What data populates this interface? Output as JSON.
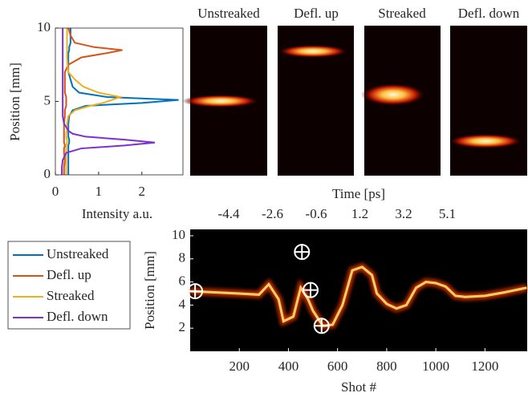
{
  "chart_data": [
    {
      "type": "line",
      "xlabel": "Intensity a.u.",
      "ylabel": "Position [mm]",
      "xlim": [
        0,
        2.95
      ],
      "xticks": [
        0,
        1,
        2
      ],
      "ylim": [
        0,
        10
      ],
      "yticks": [
        0,
        5,
        10
      ],
      "y": [
        0,
        0.5,
        1,
        1.5,
        1.8,
        2.0,
        2.2,
        2.4,
        2.6,
        2.8,
        3,
        3.5,
        4,
        4.4,
        4.7,
        4.9,
        5.1,
        5.3,
        5.6,
        6,
        6.5,
        7,
        7.5,
        8,
        8.3,
        8.5,
        8.7,
        9,
        9.5,
        10
      ],
      "series": [
        {
          "name": "Unstreaked",
          "color": "#0072bd",
          "values": [
            0.3,
            0.3,
            0.3,
            0.3,
            0.3,
            0.3,
            0.32,
            0.32,
            0.3,
            0.3,
            0.3,
            0.3,
            0.32,
            0.4,
            0.7,
            2.0,
            2.85,
            1.2,
            0.55,
            0.4,
            0.35,
            0.3,
            0.3,
            0.3,
            0.3,
            0.32,
            0.32,
            0.35,
            0.35,
            0.35
          ]
        },
        {
          "name": "Defl. up",
          "color": "#d95319",
          "values": [
            0.2,
            0.2,
            0.22,
            0.2,
            0.2,
            0.22,
            0.2,
            0.2,
            0.2,
            0.2,
            0.2,
            0.2,
            0.22,
            0.22,
            0.25,
            0.25,
            0.25,
            0.25,
            0.22,
            0.22,
            0.22,
            0.22,
            0.3,
            0.6,
            1.2,
            1.55,
            0.9,
            0.45,
            0.35,
            0.3
          ]
        },
        {
          "name": "Streaked",
          "color": "#edb120",
          "values": [
            0.25,
            0.25,
            0.25,
            0.25,
            0.25,
            0.25,
            0.27,
            0.27,
            0.25,
            0.25,
            0.27,
            0.27,
            0.3,
            0.45,
            0.8,
            1.1,
            1.3,
            1.5,
            1.0,
            0.65,
            0.45,
            0.3,
            0.28,
            0.27,
            0.27,
            0.27,
            0.27,
            0.27,
            0.27,
            0.27
          ]
        },
        {
          "name": "Defl. down",
          "color": "#7e2fd0",
          "values": [
            0.15,
            0.15,
            0.17,
            0.25,
            0.6,
            1.6,
            2.3,
            1.6,
            0.7,
            0.4,
            0.3,
            0.2,
            0.17,
            0.17,
            0.17,
            0.17,
            0.17,
            0.17,
            0.17,
            0.17,
            0.17,
            0.17,
            0.17,
            0.17,
            0.17,
            0.17,
            0.17,
            0.17,
            0.17,
            0.17
          ]
        }
      ],
      "legend": "lower left"
    },
    {
      "type": "image",
      "xlabel": "Time [ps]",
      "panels": [
        {
          "title": "Unstreaked",
          "color": "#0072bd"
        },
        {
          "title": "Defl. up",
          "color": "#d95319"
        },
        {
          "title": "Streaked",
          "color": "#edb120"
        },
        {
          "title": "Defl. down",
          "color": "#7e2fd0"
        }
      ],
      "times": [
        -4.4,
        -2.6,
        -0.6,
        1.2,
        3.2,
        5.1
      ]
    },
    {
      "type": "heatmap",
      "xlabel": "Shot #",
      "ylabel": "Position [mm]",
      "xlim": [
        0,
        1372
      ],
      "xticks": [
        200,
        400,
        600,
        800,
        1000,
        1200
      ],
      "ylim": [
        0,
        10.55
      ],
      "yticks": [
        2,
        4,
        6,
        8,
        10
      ],
      "x": [
        0,
        100,
        200,
        280,
        320,
        360,
        380,
        420,
        450,
        480,
        500,
        540,
        580,
        620,
        660,
        700,
        740,
        760,
        800,
        840,
        880,
        920,
        960,
        1000,
        1040,
        1080,
        1120,
        1200,
        1280,
        1370
      ],
      "values": [
        5.2,
        5.1,
        5.0,
        4.9,
        5.8,
        4.5,
        2.6,
        3.0,
        5.5,
        4.5,
        3.5,
        2.2,
        2.3,
        4.0,
        7.0,
        7.3,
        6.6,
        5.0,
        4.1,
        3.7,
        4.0,
        5.5,
        6.0,
        5.9,
        5.6,
        4.8,
        4.7,
        4.8,
        5.1,
        5.5
      ],
      "markers": {
        "x": [
          20,
          455,
          490,
          535
        ],
        "y": [
          5.2,
          8.6,
          5.3,
          2.2
        ]
      }
    }
  ]
}
